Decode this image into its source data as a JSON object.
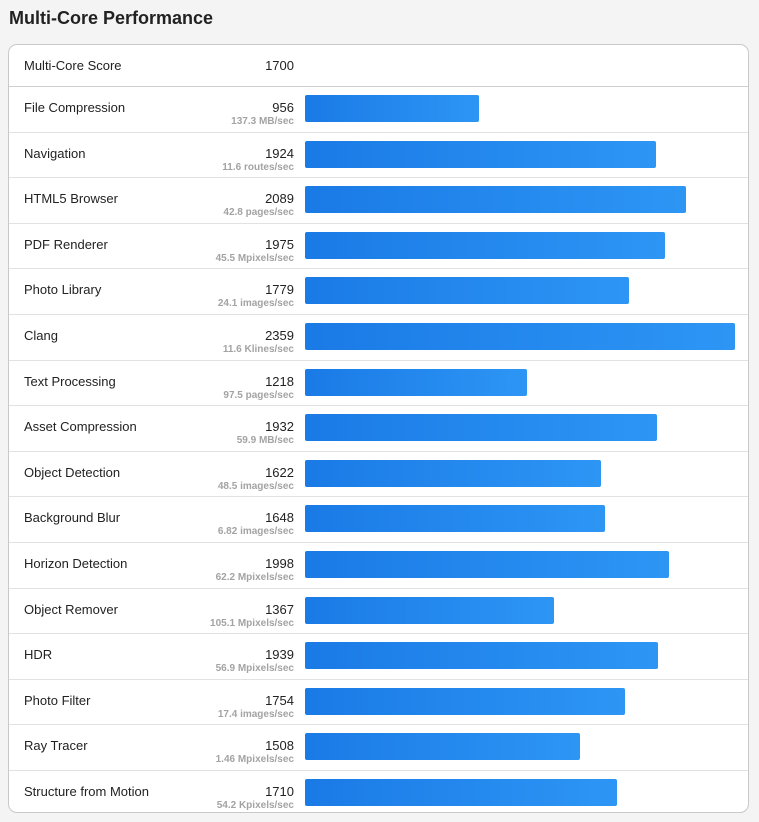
{
  "title": "Multi-Core Performance",
  "summary": {
    "label": "Multi-Core Score",
    "score": "1700"
  },
  "bar_max": 2359,
  "colors": {
    "bar_start": "#1a7ae6",
    "bar_end": "#2d96f5"
  },
  "benchmarks": [
    {
      "name": "File Compression",
      "score": "956",
      "value": 956,
      "unit": "137.3 MB/sec"
    },
    {
      "name": "Navigation",
      "score": "1924",
      "value": 1924,
      "unit": "11.6 routes/sec"
    },
    {
      "name": "HTML5 Browser",
      "score": "2089",
      "value": 2089,
      "unit": "42.8 pages/sec"
    },
    {
      "name": "PDF Renderer",
      "score": "1975",
      "value": 1975,
      "unit": "45.5 Mpixels/sec"
    },
    {
      "name": "Photo Library",
      "score": "1779",
      "value": 1779,
      "unit": "24.1 images/sec"
    },
    {
      "name": "Clang",
      "score": "2359",
      "value": 2359,
      "unit": "11.6 Klines/sec"
    },
    {
      "name": "Text Processing",
      "score": "1218",
      "value": 1218,
      "unit": "97.5 pages/sec"
    },
    {
      "name": "Asset Compression",
      "score": "1932",
      "value": 1932,
      "unit": "59.9 MB/sec"
    },
    {
      "name": "Object Detection",
      "score": "1622",
      "value": 1622,
      "unit": "48.5 images/sec"
    },
    {
      "name": "Background Blur",
      "score": "1648",
      "value": 1648,
      "unit": "6.82 images/sec"
    },
    {
      "name": "Horizon Detection",
      "score": "1998",
      "value": 1998,
      "unit": "62.2 Mpixels/sec"
    },
    {
      "name": "Object Remover",
      "score": "1367",
      "value": 1367,
      "unit": "105.1 Mpixels/sec"
    },
    {
      "name": "HDR",
      "score": "1939",
      "value": 1939,
      "unit": "56.9 Mpixels/sec"
    },
    {
      "name": "Photo Filter",
      "score": "1754",
      "value": 1754,
      "unit": "17.4 images/sec"
    },
    {
      "name": "Ray Tracer",
      "score": "1508",
      "value": 1508,
      "unit": "1.46 Mpixels/sec"
    },
    {
      "name": "Structure from Motion",
      "score": "1710",
      "value": 1710,
      "unit": "54.2 Kpixels/sec"
    }
  ]
}
